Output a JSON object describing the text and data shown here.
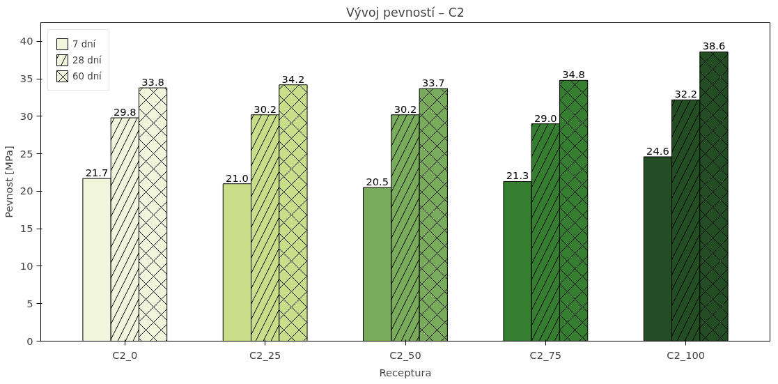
{
  "chart_data": {
    "type": "bar",
    "title": "Vývoj pevností – C2",
    "xlabel": "Receptura",
    "ylabel": "Pevnost [MPa]",
    "categories": [
      "C2_0",
      "C2_25",
      "C2_50",
      "C2_75",
      "C2_100"
    ],
    "series": [
      {
        "name": "7 dní",
        "colors": [
          "#f0f5dc",
          "#c8df8a",
          "#78ab5a",
          "#367e2f",
          "#234d22"
        ],
        "values": [
          21.7,
          21.0,
          20.5,
          21.3,
          24.6
        ],
        "value_labels": [
          "21.7",
          "21.0",
          "20.5",
          "21.3",
          "24.6"
        ]
      },
      {
        "name": "28 dní",
        "colors": [
          "#f0f5dc",
          "#c8df8a",
          "#78ab5a",
          "#367e2f",
          "#234d22"
        ],
        "values": [
          29.8,
          30.2,
          30.2,
          29.0,
          32.2
        ],
        "value_labels": [
          "29.8",
          "30.2",
          "30.2",
          "29.0",
          "32.2"
        ]
      },
      {
        "name": "60 dní",
        "colors": [
          "#f0f5dc",
          "#c8df8a",
          "#78ab5a",
          "#367e2f",
          "#234d22"
        ],
        "values": [
          33.8,
          34.2,
          33.7,
          34.8,
          38.6
        ],
        "value_labels": [
          "33.8",
          "34.2",
          "33.7",
          "34.8",
          "38.6"
        ]
      }
    ],
    "ylim": [
      0,
      42.5
    ],
    "yticks": [
      0,
      5,
      10,
      15,
      20,
      25,
      30,
      35,
      40
    ],
    "grid": false,
    "legend": "top left"
  }
}
